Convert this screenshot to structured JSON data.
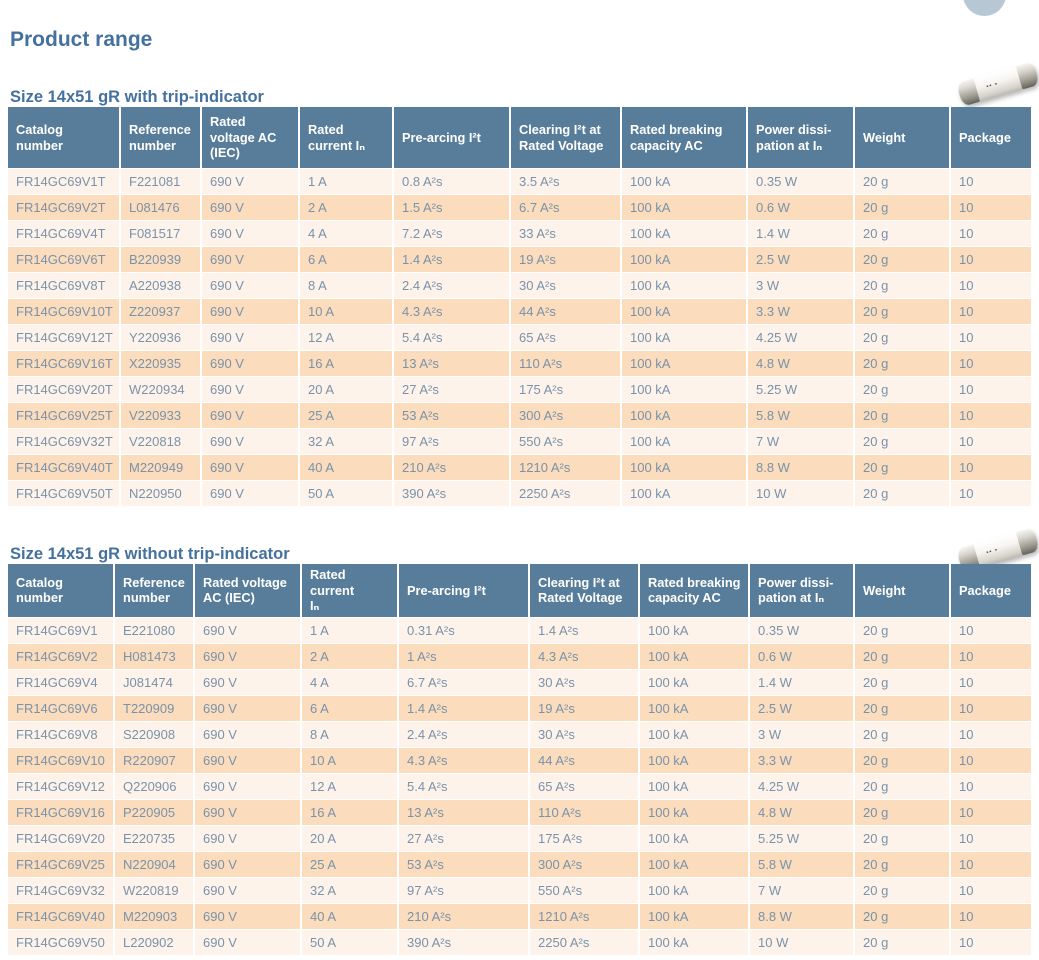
{
  "page_title": "Product range",
  "colors": {
    "title_text": "#44719e",
    "table_header_bg": "#587d9a",
    "row_odd_bg": "#fdf3ea",
    "row_even_bg": "#fbdcbc",
    "cell_text": "#7a92aa",
    "decor_circle": "#b7c7d3"
  },
  "tables": [
    {
      "title": "Size 14x51 gR with trip-indicator",
      "columns": [
        "Catalog\nnumber",
        "Reference\nnumber",
        "Rated\nvoltage AC\n(IEC)",
        "Rated\ncurrent Iₙ",
        "Pre-arcing I²t",
        "Clearing I²t at\nRated Voltage",
        "Rated breaking\ncapacity AC",
        "Power dissi-\npation at Iₙ",
        "Weight",
        "Package"
      ],
      "rows": [
        [
          "FR14GC69V1T",
          "F221081",
          "690 V",
          "1 A",
          "0.8 A²s",
          "3.5 A²s",
          "100 kA",
          "0.35 W",
          "20 g",
          "10"
        ],
        [
          "FR14GC69V2T",
          "L081476",
          "690 V",
          "2 A",
          "1.5 A²s",
          "6.7 A²s",
          "100 kA",
          "0.6 W",
          "20 g",
          "10"
        ],
        [
          "FR14GC69V4T",
          "F081517",
          "690 V",
          "4 A",
          "7.2 A²s",
          "33 A²s",
          "100 kA",
          "1.4 W",
          "20 g",
          "10"
        ],
        [
          "FR14GC69V6T",
          "B220939",
          "690 V",
          "6 A",
          "1.4 A²s",
          "19 A²s",
          "100 kA",
          "2.5 W",
          "20 g",
          "10"
        ],
        [
          "FR14GC69V8T",
          "A220938",
          "690 V",
          "8 A",
          "2.4 A²s",
          "30 A²s",
          "100 kA",
          "3 W",
          "20 g",
          "10"
        ],
        [
          "FR14GC69V10T",
          "Z220937",
          "690 V",
          "10 A",
          "4.3 A²s",
          "44 A²s",
          "100 kA",
          "3.3 W",
          "20 g",
          "10"
        ],
        [
          "FR14GC69V12T",
          "Y220936",
          "690 V",
          "12 A",
          "5.4 A²s",
          "65 A²s",
          "100 kA",
          "4.25 W",
          "20 g",
          "10"
        ],
        [
          "FR14GC69V16T",
          "X220935",
          "690 V",
          "16 A",
          "13 A²s",
          "110 A²s",
          "100 kA",
          "4.8 W",
          "20 g",
          "10"
        ],
        [
          "FR14GC69V20T",
          "W220934",
          "690 V",
          "20 A",
          "27 A²s",
          "175 A²s",
          "100 kA",
          "5.25 W",
          "20 g",
          "10"
        ],
        [
          "FR14GC69V25T",
          "V220933",
          "690 V",
          "25 A",
          "53 A²s",
          "300 A²s",
          "100 kA",
          "5.8 W",
          "20 g",
          "10"
        ],
        [
          "FR14GC69V32T",
          "V220818",
          "690 V",
          "32 A",
          "97 A²s",
          "550 A²s",
          "100 kA",
          "7 W",
          "20 g",
          "10"
        ],
        [
          "FR14GC69V40T",
          "M220949",
          "690 V",
          "40 A",
          "210 A²s",
          "1210 A²s",
          "100 kA",
          "8.8 W",
          "20 g",
          "10"
        ],
        [
          "FR14GC69V50T",
          "N220950",
          "690 V",
          "50 A",
          "390 A²s",
          "2250 A²s",
          "100 kA",
          "10 W",
          "20 g",
          "10"
        ]
      ]
    },
    {
      "title": "Size 14x51 gR without trip-indicator",
      "columns": [
        "Catalog\nnumber",
        "Reference\nnumber",
        "Rated voltage\nAC (IEC)",
        "Rated current\nIₙ",
        "Pre-arcing I²t",
        "Clearing I²t at\nRated Voltage",
        "Rated breaking\ncapacity AC",
        "Power dissi-\npation at Iₙ",
        "Weight",
        "Package"
      ],
      "rows": [
        [
          "FR14GC69V1",
          "E221080",
          "690 V",
          "1 A",
          "0.31 A²s",
          "1.4 A²s",
          "100 kA",
          "0.35 W",
          "20 g",
          "10"
        ],
        [
          "FR14GC69V2",
          "H081473",
          "690 V",
          "2 A",
          "1 A²s",
          "4.3 A²s",
          "100 kA",
          "0.6 W",
          "20 g",
          "10"
        ],
        [
          "FR14GC69V4",
          "J081474",
          "690 V",
          "4 A",
          "6.7 A²s",
          "30 A²s",
          "100 kA",
          "1.4 W",
          "20 g",
          "10"
        ],
        [
          "FR14GC69V6",
          "T220909",
          "690 V",
          "6 A",
          "1.4 A²s",
          "19 A²s",
          "100 kA",
          "2.5 W",
          "20 g",
          "10"
        ],
        [
          "FR14GC69V8",
          "S220908",
          "690 V",
          "8 A",
          "2.4 A²s",
          "30 A²s",
          "100 kA",
          "3 W",
          "20 g",
          "10"
        ],
        [
          "FR14GC69V10",
          "R220907",
          "690 V",
          "10 A",
          "4.3 A²s",
          "44 A²s",
          "100 kA",
          "3.3 W",
          "20 g",
          "10"
        ],
        [
          "FR14GC69V12",
          "Q220906",
          "690 V",
          "12 A",
          "5.4 A²s",
          "65 A²s",
          "100 kA",
          "4.25 W",
          "20 g",
          "10"
        ],
        [
          "FR14GC69V16",
          "P220905",
          "690 V",
          "16 A",
          "13 A²s",
          "110 A²s",
          "100 kA",
          "4.8 W",
          "20 g",
          "10"
        ],
        [
          "FR14GC69V20",
          "E220735",
          "690 V",
          "20 A",
          "27 A²s",
          "175 A²s",
          "100 kA",
          "5.25 W",
          "20 g",
          "10"
        ],
        [
          "FR14GC69V25",
          "N220904",
          "690 V",
          "25 A",
          "53 A²s",
          "300 A²s",
          "100 kA",
          "5.8 W",
          "20 g",
          "10"
        ],
        [
          "FR14GC69V32",
          "W220819",
          "690 V",
          "32 A",
          "97 A²s",
          "550 A²s",
          "100 kA",
          "7 W",
          "20 g",
          "10"
        ],
        [
          "FR14GC69V40",
          "M220903",
          "690 V",
          "40 A",
          "210 A²s",
          "1210 A²s",
          "100 kA",
          "8.8 W",
          "20 g",
          "10"
        ],
        [
          "FR14GC69V50",
          "L220902",
          "690 V",
          "50 A",
          "390 A²s",
          "2250 A²s",
          "100 kA",
          "10 W",
          "20 g",
          "10"
        ]
      ]
    }
  ]
}
